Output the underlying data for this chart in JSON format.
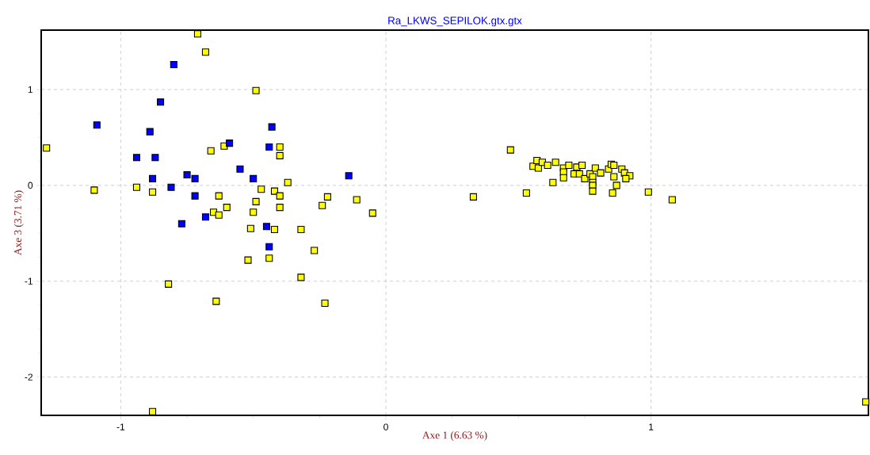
{
  "chart_data": {
    "type": "scatter",
    "title": "Ra_LKWS_SEPILOK.gtx.gtx",
    "xlabel": "Axe 1 (6.63 %)",
    "ylabel": "Axe 3 (3.71 %)",
    "xlim": [
      -1.3,
      1.82
    ],
    "ylim": [
      -2.4,
      1.62
    ],
    "xticks": [
      -1,
      0,
      1
    ],
    "yticks": [
      -2,
      -1,
      0,
      1
    ],
    "grid": true,
    "marker": "square",
    "series": [
      {
        "color": "#ffff00",
        "x": [
          -1.28,
          -1.1,
          -0.94,
          -0.88,
          -0.71,
          -0.68,
          -0.49,
          -0.66,
          -0.61,
          -0.4,
          -0.4,
          -0.37,
          -0.47,
          -0.42,
          -0.4,
          -0.63,
          -0.6,
          -0.65,
          -0.63,
          -0.49,
          -0.5,
          -0.4,
          -0.51,
          -0.42,
          -0.32,
          -0.52,
          -0.44,
          -0.27,
          -0.32,
          -0.64,
          -0.23,
          -0.82,
          -0.88,
          -0.24,
          -0.22,
          -0.11,
          -0.05,
          1.81,
          0.33,
          0.47,
          0.53,
          0.63,
          0.555,
          0.57,
          0.575,
          0.59,
          0.61,
          0.64,
          0.67,
          0.67,
          0.67,
          0.69,
          0.71,
          0.72,
          0.73,
          0.74,
          0.75,
          0.77,
          0.78,
          0.78,
          0.78,
          0.78,
          0.79,
          0.81,
          0.84,
          0.85,
          0.86,
          0.86,
          0.87,
          0.855,
          0.89,
          0.9,
          0.92,
          0.905,
          0.99,
          1.08
        ],
        "values": [
          0.39,
          -0.05,
          -0.02,
          -0.07,
          1.58,
          1.39,
          0.99,
          0.36,
          0.41,
          0.4,
          0.31,
          0.03,
          -0.04,
          -0.06,
          -0.11,
          -0.11,
          -0.23,
          -0.28,
          -0.31,
          -0.17,
          -0.28,
          -0.23,
          -0.45,
          -0.46,
          -0.46,
          -0.78,
          -0.76,
          -0.68,
          -0.96,
          -1.21,
          -1.23,
          -1.03,
          -2.36,
          -0.21,
          -0.12,
          -0.15,
          -0.29,
          -2.26,
          -0.12,
          0.37,
          -0.08,
          0.03,
          0.2,
          0.26,
          0.18,
          0.24,
          0.21,
          0.24,
          0.18,
          0.14,
          0.08,
          0.21,
          0.12,
          0.19,
          0.12,
          0.21,
          0.07,
          0.12,
          0.09,
          0.03,
          0.0,
          -0.06,
          0.18,
          0.13,
          0.17,
          0.22,
          0.21,
          0.09,
          0.0,
          -0.08,
          0.17,
          0.13,
          0.1,
          0.07,
          -0.07,
          -0.15
        ]
      },
      {
        "color": "#0000ff",
        "x": [
          -1.09,
          -0.8,
          -0.85,
          -0.89,
          -0.94,
          -0.87,
          -0.88,
          -0.81,
          -0.75,
          -0.72,
          -0.72,
          -0.77,
          -0.68,
          -0.59,
          -0.55,
          -0.5,
          -0.44,
          -0.43,
          -0.45,
          -0.44,
          -0.14
        ],
        "values": [
          0.63,
          1.26,
          0.87,
          0.56,
          0.29,
          0.29,
          0.07,
          -0.02,
          0.11,
          0.07,
          -0.11,
          -0.4,
          -0.33,
          0.44,
          0.17,
          0.07,
          0.4,
          0.61,
          -0.43,
          -0.64,
          0.1
        ]
      }
    ]
  }
}
